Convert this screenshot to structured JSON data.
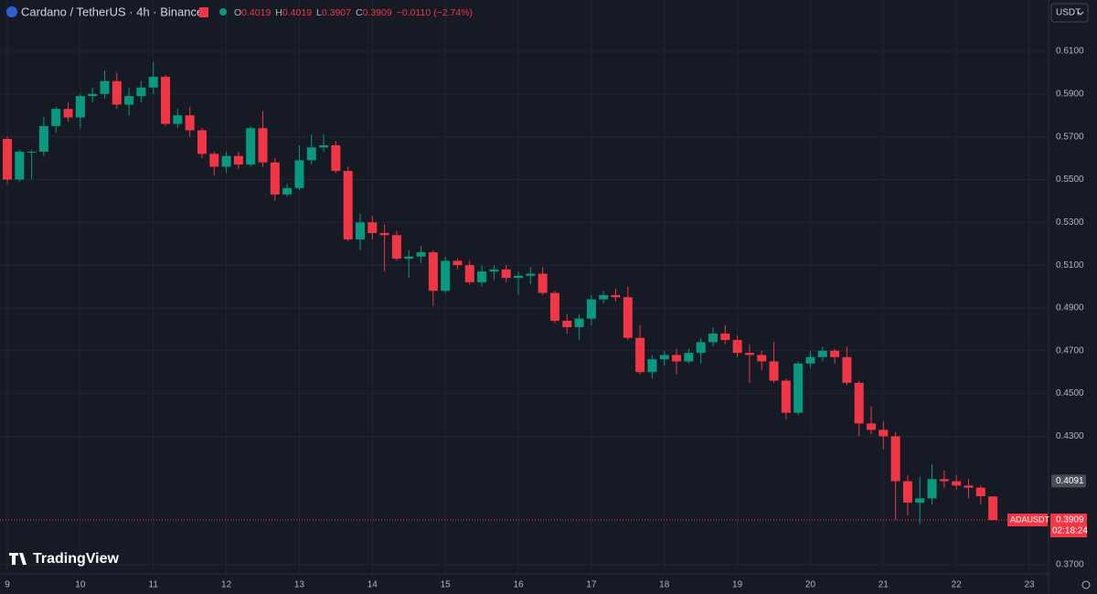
{
  "header": {
    "symbol": "Cardano / TetherUS · 4h · Binance",
    "ohlc": [
      {
        "label": "O",
        "value": 0.4019
      },
      {
        "label": "H",
        "value": 0.4019
      },
      {
        "label": "L",
        "value": 0.3907
      },
      {
        "label": "C",
        "value": 0.3909
      }
    ],
    "change": "−0.0110 (−2.74%)",
    "currency": "USDT"
  },
  "branding": "TradingView",
  "chart_data": {
    "type": "candlestick",
    "up_color": "#089981",
    "down_color": "#f23645",
    "x_labels": [
      "9",
      "10",
      "11",
      "12",
      "13",
      "14",
      "15",
      "16",
      "17",
      "18",
      "19",
      "20",
      "21",
      "22",
      "23"
    ],
    "open": [
      0.569,
      0.55,
      0.563,
      0.563,
      0.575,
      0.583,
      0.579,
      0.589,
      0.59,
      0.596,
      0.585,
      0.589,
      0.593,
      0.598,
      0.576,
      0.58,
      0.573,
      0.562,
      0.556,
      0.561,
      0.557,
      0.574,
      0.558,
      0.543,
      0.546,
      0.559,
      0.565,
      0.566,
      0.554,
      0.522,
      0.53,
      0.525,
      0.524,
      0.513,
      0.514,
      0.516,
      0.498,
      0.512,
      0.51,
      0.502,
      0.507,
      0.508,
      0.504,
      0.505,
      0.506,
      0.497,
      0.484,
      0.481,
      0.485,
      0.494,
      0.496,
      0.495,
      0.476,
      0.46,
      0.466,
      0.468,
      0.465,
      0.469,
      0.474,
      0.478,
      0.475,
      0.469,
      0.468,
      0.465,
      0.456,
      0.441,
      0.464,
      0.467,
      0.47,
      0.467,
      0.455,
      0.436,
      0.433,
      0.43,
      0.409,
      0.399,
      0.401,
      0.41,
      0.409,
      0.407,
      0.406,
      0.4019
    ],
    "high": [
      0.57,
      0.564,
      0.564,
      0.579,
      0.584,
      0.586,
      0.59,
      0.593,
      0.601,
      0.6,
      0.593,
      0.596,
      0.605,
      0.599,
      0.583,
      0.584,
      0.574,
      0.563,
      0.563,
      0.563,
      0.575,
      0.582,
      0.56,
      0.548,
      0.566,
      0.571,
      0.571,
      0.568,
      0.556,
      0.534,
      0.533,
      0.529,
      0.526,
      0.517,
      0.519,
      0.517,
      0.514,
      0.513,
      0.512,
      0.51,
      0.51,
      0.51,
      0.507,
      0.509,
      0.509,
      0.498,
      0.487,
      0.487,
      0.496,
      0.498,
      0.499,
      0.5,
      0.482,
      0.468,
      0.47,
      0.471,
      0.471,
      0.476,
      0.481,
      0.482,
      0.477,
      0.473,
      0.47,
      0.474,
      0.457,
      0.465,
      0.47,
      0.472,
      0.471,
      0.472,
      0.456,
      0.444,
      0.437,
      0.432,
      0.412,
      0.411,
      0.417,
      0.414,
      0.412,
      0.41,
      0.407,
      0.4019
    ],
    "low": [
      0.548,
      0.549,
      0.55,
      0.561,
      0.572,
      0.577,
      0.574,
      0.586,
      0.588,
      0.583,
      0.58,
      0.586,
      0.59,
      0.575,
      0.574,
      0.57,
      0.56,
      0.552,
      0.553,
      0.555,
      0.556,
      0.556,
      0.54,
      0.542,
      0.545,
      0.557,
      0.563,
      0.553,
      0.521,
      0.517,
      0.522,
      0.507,
      0.512,
      0.504,
      0.511,
      0.491,
      0.497,
      0.508,
      0.501,
      0.5,
      0.503,
      0.502,
      0.496,
      0.501,
      0.496,
      0.483,
      0.478,
      0.475,
      0.482,
      0.492,
      0.493,
      0.475,
      0.459,
      0.457,
      0.463,
      0.459,
      0.464,
      0.464,
      0.472,
      0.473,
      0.467,
      0.455,
      0.461,
      0.455,
      0.438,
      0.44,
      0.462,
      0.465,
      0.464,
      0.454,
      0.43,
      0.431,
      0.424,
      0.391,
      0.393,
      0.389,
      0.398,
      0.406,
      0.405,
      0.401,
      0.398,
      0.3907
    ],
    "close": [
      0.55,
      0.563,
      0.563,
      0.575,
      0.583,
      0.579,
      0.589,
      0.59,
      0.596,
      0.585,
      0.589,
      0.593,
      0.598,
      0.576,
      0.58,
      0.573,
      0.562,
      0.556,
      0.561,
      0.557,
      0.574,
      0.558,
      0.543,
      0.546,
      0.559,
      0.565,
      0.566,
      0.554,
      0.522,
      0.53,
      0.525,
      0.524,
      0.513,
      0.514,
      0.516,
      0.498,
      0.512,
      0.51,
      0.502,
      0.507,
      0.508,
      0.504,
      0.505,
      0.506,
      0.497,
      0.484,
      0.481,
      0.485,
      0.494,
      0.496,
      0.495,
      0.476,
      0.46,
      0.466,
      0.468,
      0.465,
      0.469,
      0.474,
      0.478,
      0.475,
      0.469,
      0.468,
      0.465,
      0.456,
      0.441,
      0.464,
      0.467,
      0.47,
      0.467,
      0.455,
      0.436,
      0.433,
      0.43,
      0.409,
      0.399,
      0.401,
      0.41,
      0.409,
      0.407,
      0.406,
      0.402,
      0.3909
    ],
    "ylim": [
      0.3657,
      0.6339
    ],
    "yticks": [
      {
        "value": 0.61,
        "label": "0.6100"
      },
      {
        "value": 0.59,
        "label": "0.5900"
      },
      {
        "value": 0.57,
        "label": "0.5700"
      },
      {
        "value": 0.55,
        "label": "0.5500"
      },
      {
        "value": 0.53,
        "label": "0.5300"
      },
      {
        "value": 0.51,
        "label": "0.5100"
      },
      {
        "value": 0.49,
        "label": "0.4900"
      },
      {
        "value": 0.47,
        "label": "0.4700"
      },
      {
        "value": 0.45,
        "label": "0.4500"
      },
      {
        "value": 0.43,
        "label": "0.4300"
      },
      {
        "value": 0.37,
        "label": "0.3700"
      }
    ],
    "marker": 0.4091,
    "last_price": {
      "symbol": "ADAUSDT",
      "value": 0.3909,
      "countdown": "02:18:24"
    },
    "grid": true
  }
}
